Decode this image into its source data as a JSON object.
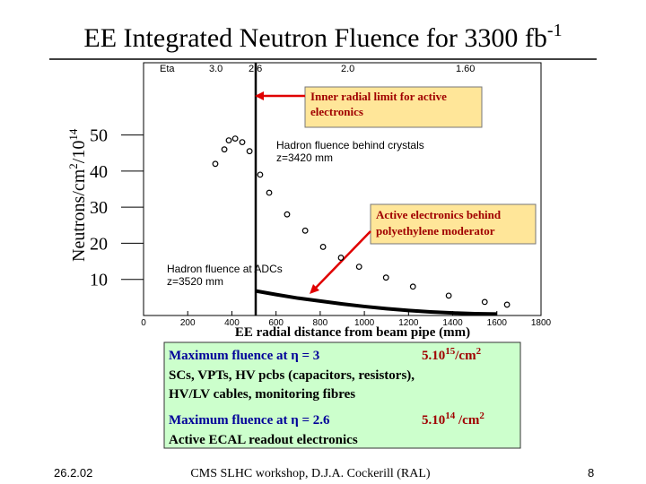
{
  "chart_data": {
    "type": "scatter",
    "title": {
      "text": "EE Integrated Neutron Fluence for 3300 fb",
      "sup": "-1"
    },
    "y_label": {
      "a": "Neutrons/cm",
      "b": "2",
      "c": "/10",
      "d": "14"
    },
    "x_label": "EE radial distance from beam pipe (mm)",
    "top_axis": [
      "Eta",
      "3.0",
      "2.6",
      "2.0",
      "1.60"
    ],
    "xlim": [
      0,
      1800
    ],
    "xticks": [
      0,
      200,
      400,
      600,
      800,
      1000,
      1200,
      1400,
      1600,
      1800
    ],
    "ylim": [
      0,
      70
    ],
    "yticks": [
      10,
      20,
      30,
      40,
      50
    ],
    "series": [
      {
        "name": "Hadron fluence behind crystals",
        "note": "z=3420 mm",
        "color": "#000000",
        "marker": "open-circle",
        "x": [
          325,
          366,
          386,
          415,
          447,
          480,
          528,
          569,
          650,
          732,
          813,
          894,
          976,
          1098,
          1220,
          1382,
          1545,
          1646
        ],
        "values": [
          42,
          46,
          48.5,
          49,
          48,
          45.5,
          39,
          34,
          28,
          23.5,
          19,
          16,
          13.5,
          10.5,
          8,
          5.5,
          3.75,
          3
        ]
      },
      {
        "name": "Hadron fluence at ADCs",
        "note": "z=3520 mm",
        "color": "#000000",
        "marker": "line",
        "x": [
          508,
          600,
          700,
          800,
          900,
          1000,
          1100,
          1200,
          1300,
          1400,
          1500,
          1600
        ],
        "values": [
          6.8,
          5.8,
          4.8,
          4,
          3.2,
          2.5,
          1.9,
          1.4,
          1,
          0.7,
          0.5,
          0.4
        ]
      }
    ]
  },
  "callouts": [
    "Inner radial limit for active electronics",
    "Active electronics behind polyethylene moderator"
  ],
  "summary": {
    "line1": "Maximum fluence at η = 3",
    "value1": {
      "a": "5.10",
      "b": "15",
      "c": "/cm",
      "d": "2"
    },
    "line2": "SCs, VPTs, HV pcbs (capacitors, resistors),",
    "line3": "HV/LV cables, monitoring fibres",
    "line4": "Maximum fluence at η = 2.6",
    "value2": {
      "a": "5.10",
      "b": "14",
      "c": " /cm",
      "d": "2"
    },
    "line5": "Active ECAL readout electronics"
  },
  "footer": {
    "date": "26.2.02",
    "event": "CMS SLHC workshop, D.J.A. Cockerill (RAL)",
    "page": "8"
  }
}
